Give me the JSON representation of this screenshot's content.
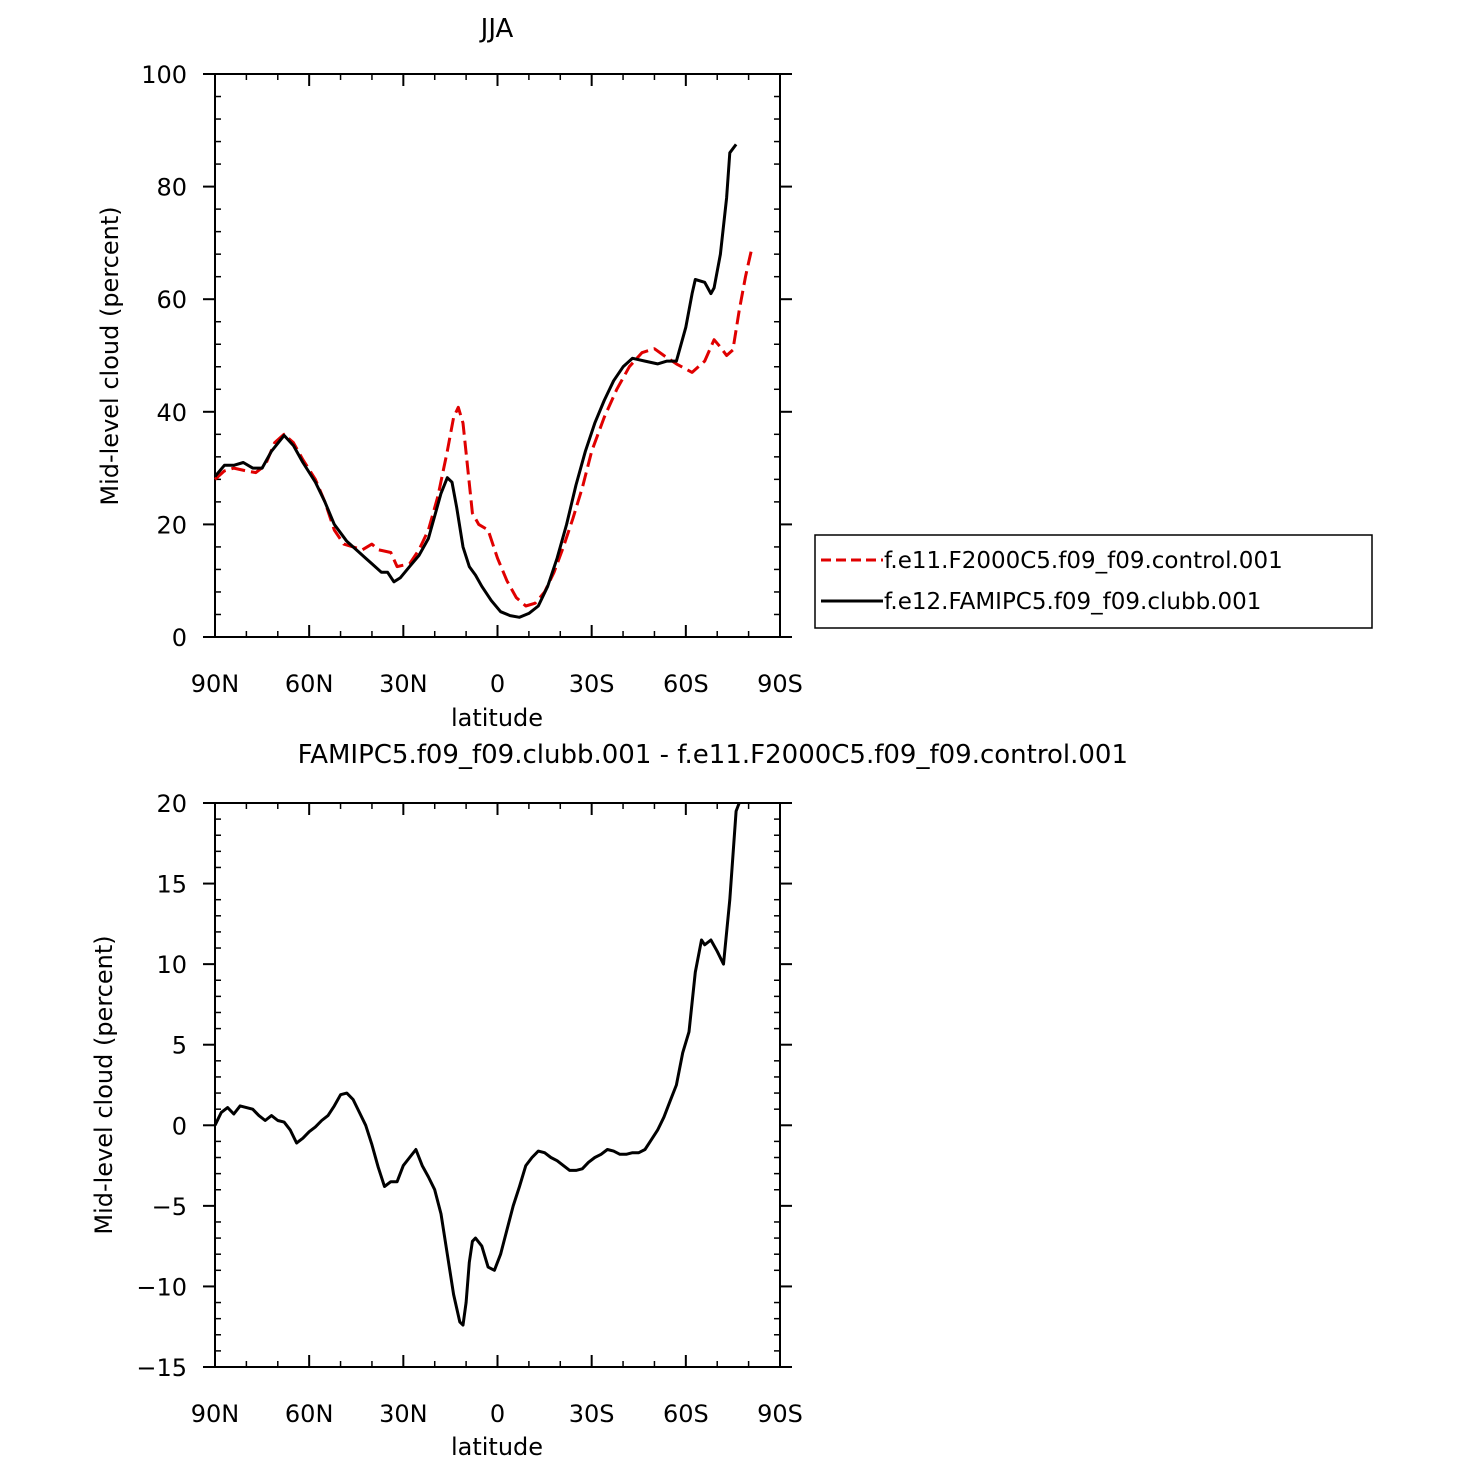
{
  "chart_data": [
    {
      "type": "line",
      "title": "JJA",
      "xlabel": "latitude",
      "ylabel": "Mid-level cloud (percent)",
      "xlim": [
        -90,
        90
      ],
      "ylim": [
        0,
        100
      ],
      "x_ticks": [
        -90,
        -60,
        -30,
        0,
        30,
        60,
        90
      ],
      "x_tick_labels": [
        "90N",
        "60N",
        "30N",
        "0",
        "30S",
        "60S",
        "90S"
      ],
      "y_ticks": [
        0,
        20,
        40,
        60,
        80,
        100
      ],
      "y_tick_labels": [
        "0",
        "20",
        "40",
        "60",
        "80",
        "100"
      ],
      "legend": {
        "placement": "right"
      },
      "series": [
        {
          "name": "f.e11.F2000C5.f09_f09.control.001",
          "color": "#e00000",
          "dash": "dashed",
          "points": [
            [
              -90,
              28
            ],
            [
              -87,
              29.5
            ],
            [
              -84,
              30
            ],
            [
              -80,
              29.5
            ],
            [
              -77,
              29.2
            ],
            [
              -74,
              30.5
            ],
            [
              -71,
              34.5
            ],
            [
              -68,
              36
            ],
            [
              -65,
              34.5
            ],
            [
              -62,
              31.5
            ],
            [
              -58,
              28
            ],
            [
              -55,
              24
            ],
            [
              -52,
              19
            ],
            [
              -49,
              16.5
            ],
            [
              -46,
              16
            ],
            [
              -43,
              15.5
            ],
            [
              -40,
              16.5
            ],
            [
              -38,
              15.5
            ],
            [
              -34,
              15
            ],
            [
              -32,
              12.5
            ],
            [
              -28,
              13
            ],
            [
              -25,
              15.5
            ],
            [
              -22,
              19
            ],
            [
              -19,
              25
            ],
            [
              -16,
              33
            ],
            [
              -14,
              39
            ],
            [
              -12.5,
              40.8
            ],
            [
              -11,
              38
            ],
            [
              -9.5,
              30
            ],
            [
              -8,
              22
            ],
            [
              -6,
              20
            ],
            [
              -3,
              19
            ],
            [
              0,
              14
            ],
            [
              3,
              10
            ],
            [
              6,
              7
            ],
            [
              9,
              5.5
            ],
            [
              12,
              6
            ],
            [
              15,
              8
            ],
            [
              18,
              11.5
            ],
            [
              21,
              16
            ],
            [
              24,
              21
            ],
            [
              27,
              26.5
            ],
            [
              30,
              33
            ],
            [
              34,
              39
            ],
            [
              38,
              44
            ],
            [
              42,
              48
            ],
            [
              46,
              50.5
            ],
            [
              50,
              51.2
            ],
            [
              53,
              50
            ],
            [
              57,
              48.5
            ],
            [
              62,
              47
            ],
            [
              66,
              49
            ],
            [
              69,
              52.8
            ],
            [
              71,
              51.5
            ],
            [
              73,
              50
            ],
            [
              75,
              51
            ],
            [
              77,
              58
            ],
            [
              79,
              64
            ],
            [
              80,
              66.5
            ],
            [
              81,
              69
            ]
          ]
        },
        {
          "name": "f.e12.FAMIPC5.f09_f09.clubb.001",
          "color": "#000000",
          "dash": "solid",
          "points": [
            [
              -90,
              28.5
            ],
            [
              -87,
              30.5
            ],
            [
              -84,
              30.5
            ],
            [
              -81,
              31
            ],
            [
              -78,
              30
            ],
            [
              -75,
              30
            ],
            [
              -72,
              33
            ],
            [
              -68,
              35.8
            ],
            [
              -65,
              34
            ],
            [
              -62,
              31
            ],
            [
              -58,
              27.5
            ],
            [
              -55,
              24
            ],
            [
              -52,
              20
            ],
            [
              -48,
              17
            ],
            [
              -45,
              15.5
            ],
            [
              -42,
              14
            ],
            [
              -40,
              13
            ],
            [
              -37,
              11.5
            ],
            [
              -35,
              11.5
            ],
            [
              -33,
              9.8
            ],
            [
              -31,
              10.5
            ],
            [
              -28,
              12.5
            ],
            [
              -25,
              14.5
            ],
            [
              -22,
              17.5
            ],
            [
              -20,
              21.5
            ],
            [
              -18,
              25.5
            ],
            [
              -16,
              28.3
            ],
            [
              -14.5,
              27.5
            ],
            [
              -13,
              23
            ],
            [
              -11,
              16
            ],
            [
              -9,
              12.5
            ],
            [
              -7,
              11
            ],
            [
              -5,
              9
            ],
            [
              -2,
              6.5
            ],
            [
              1,
              4.5
            ],
            [
              4,
              3.8
            ],
            [
              7,
              3.5
            ],
            [
              10,
              4.2
            ],
            [
              13,
              5.5
            ],
            [
              16,
              9
            ],
            [
              19,
              14
            ],
            [
              22,
              20
            ],
            [
              25,
              27
            ],
            [
              28,
              33
            ],
            [
              31,
              38
            ],
            [
              34,
              42
            ],
            [
              37,
              45.5
            ],
            [
              40,
              48
            ],
            [
              43,
              49.5
            ],
            [
              47,
              49
            ],
            [
              51,
              48.5
            ],
            [
              54,
              49
            ],
            [
              57,
              49
            ],
            [
              60,
              55
            ],
            [
              62,
              61
            ],
            [
              63,
              63.5
            ],
            [
              66,
              63
            ],
            [
              68,
              61
            ],
            [
              69,
              62
            ],
            [
              71,
              68
            ],
            [
              73,
              78
            ],
            [
              74,
              86
            ],
            [
              76,
              87.5
            ]
          ]
        }
      ]
    },
    {
      "type": "line",
      "title": "FAMIPC5.f09_f09.clubb.001 - f.e11.F2000C5.f09_f09.control.001",
      "xlabel": "latitude",
      "ylabel": "Mid-level cloud (percent)",
      "xlim": [
        -90,
        90
      ],
      "ylim": [
        -15,
        20
      ],
      "x_ticks": [
        -90,
        -60,
        -30,
        0,
        30,
        60,
        90
      ],
      "x_tick_labels": [
        "90N",
        "60N",
        "30N",
        "0",
        "30S",
        "60S",
        "90S"
      ],
      "y_ticks": [
        -15,
        -10,
        -5,
        0,
        5,
        10,
        15,
        20
      ],
      "y_tick_labels": [
        "−15",
        "−10",
        "−5",
        "0",
        "5",
        "10",
        "15",
        "20"
      ],
      "series": [
        {
          "color": "#000000",
          "dash": "solid",
          "points": [
            [
              -90,
              0
            ],
            [
              -88,
              0.8
            ],
            [
              -86,
              1.1
            ],
            [
              -84,
              0.7
            ],
            [
              -82,
              1.2
            ],
            [
              -80,
              1.1
            ],
            [
              -78,
              1.0
            ],
            [
              -76,
              0.6
            ],
            [
              -74,
              0.3
            ],
            [
              -72,
              0.6
            ],
            [
              -70,
              0.3
            ],
            [
              -68,
              0.2
            ],
            [
              -66,
              -0.3
            ],
            [
              -64,
              -1.1
            ],
            [
              -62,
              -0.8
            ],
            [
              -60,
              -0.4
            ],
            [
              -58,
              -0.1
            ],
            [
              -56,
              0.3
            ],
            [
              -54,
              0.6
            ],
            [
              -52,
              1.2
            ],
            [
              -50,
              1.9
            ],
            [
              -48,
              2.0
            ],
            [
              -46,
              1.6
            ],
            [
              -44,
              0.8
            ],
            [
              -42,
              0
            ],
            [
              -40,
              -1.2
            ],
            [
              -38,
              -2.6
            ],
            [
              -36,
              -3.8
            ],
            [
              -34,
              -3.5
            ],
            [
              -32,
              -3.5
            ],
            [
              -30,
              -2.5
            ],
            [
              -28,
              -2.0
            ],
            [
              -26,
              -1.5
            ],
            [
              -24,
              -2.5
            ],
            [
              -22,
              -3.2
            ],
            [
              -20,
              -4.0
            ],
            [
              -18,
              -5.5
            ],
            [
              -16,
              -8.0
            ],
            [
              -14,
              -10.5
            ],
            [
              -12,
              -12.2
            ],
            [
              -11,
              -12.4
            ],
            [
              -10,
              -11.0
            ],
            [
              -9,
              -8.5
            ],
            [
              -8,
              -7.2
            ],
            [
              -7,
              -7.0
            ],
            [
              -5,
              -7.5
            ],
            [
              -3,
              -8.8
            ],
            [
              -1,
              -9.0
            ],
            [
              1,
              -8.0
            ],
            [
              3,
              -6.5
            ],
            [
              5,
              -5.0
            ],
            [
              7,
              -3.8
            ],
            [
              9,
              -2.5
            ],
            [
              11,
              -2.0
            ],
            [
              13,
              -1.6
            ],
            [
              15,
              -1.7
            ],
            [
              17,
              -2.0
            ],
            [
              19,
              -2.2
            ],
            [
              21,
              -2.5
            ],
            [
              23,
              -2.8
            ],
            [
              25,
              -2.8
            ],
            [
              27,
              -2.7
            ],
            [
              29,
              -2.3
            ],
            [
              31,
              -2.0
            ],
            [
              33,
              -1.8
            ],
            [
              35,
              -1.5
            ],
            [
              37,
              -1.6
            ],
            [
              39,
              -1.8
            ],
            [
              41,
              -1.8
            ],
            [
              43,
              -1.7
            ],
            [
              45,
              -1.7
            ],
            [
              47,
              -1.5
            ],
            [
              49,
              -0.9
            ],
            [
              51,
              -0.3
            ],
            [
              53,
              0.5
            ],
            [
              55,
              1.5
            ],
            [
              57,
              2.5
            ],
            [
              59,
              4.5
            ],
            [
              61,
              5.8
            ],
            [
              63,
              9.5
            ],
            [
              65,
              11.5
            ],
            [
              66,
              11.2
            ],
            [
              68,
              11.5
            ],
            [
              70,
              10.8
            ],
            [
              72,
              10.0
            ],
            [
              74,
              14.0
            ],
            [
              76,
              19.5
            ],
            [
              77,
              20.0
            ]
          ]
        }
      ]
    }
  ]
}
